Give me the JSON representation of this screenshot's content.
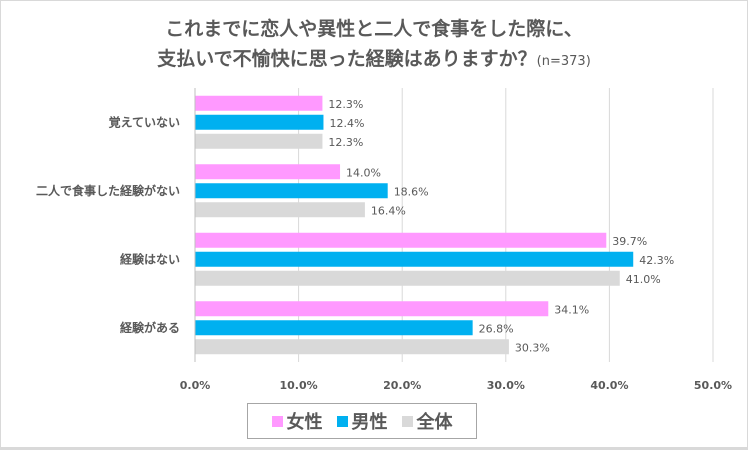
{
  "chart_data": {
    "type": "bar",
    "orientation": "horizontal",
    "title_line1": "これまでに恋人や異性と二人で食事をした際に、",
    "title_line2": "支払いで不愉快に思った経験はありますか？",
    "title_note": "(n=373)",
    "categories": [
      "覚えていない",
      "二人で食事した経験がない",
      "経験はない",
      "経験がある"
    ],
    "series": [
      {
        "name": "女性",
        "color": "#FF99FF",
        "values": [
          12.3,
          14.0,
          39.7,
          34.1
        ]
      },
      {
        "name": "男性",
        "color": "#00B0F0",
        "values": [
          12.4,
          18.6,
          42.3,
          26.8
        ]
      },
      {
        "name": "全体",
        "color": "#D9D9D9",
        "values": [
          12.3,
          16.4,
          41.0,
          30.3
        ]
      }
    ],
    "xlim": [
      0,
      50
    ],
    "xticks": [
      "0.0%",
      "10.0%",
      "20.0%",
      "30.0%",
      "40.0%",
      "50.0%"
    ],
    "grid": true,
    "legend": "bottom"
  }
}
